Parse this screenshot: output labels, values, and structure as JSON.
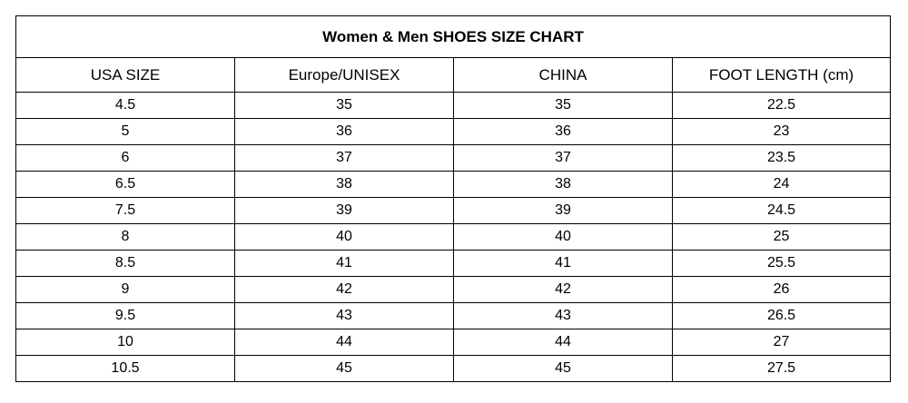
{
  "title": "Women & Men SHOES SIZE CHART",
  "headers": [
    "USA SIZE",
    "Europe/UNISEX",
    "CHINA",
    "FOOT LENGTH (cm)"
  ],
  "rows": [
    [
      "4.5",
      "35",
      "35",
      "22.5"
    ],
    [
      "5",
      "36",
      "36",
      "23"
    ],
    [
      "6",
      "37",
      "37",
      "23.5"
    ],
    [
      "6.5",
      "38",
      "38",
      "24"
    ],
    [
      "7.5",
      "39",
      "39",
      "24.5"
    ],
    [
      "8",
      "40",
      "40",
      "25"
    ],
    [
      "8.5",
      "41",
      "41",
      "25.5"
    ],
    [
      "9",
      "42",
      "42",
      "26"
    ],
    [
      "9.5",
      "43",
      "43",
      "26.5"
    ],
    [
      "10",
      "44",
      "44",
      "27"
    ],
    [
      "10.5",
      "45",
      "45",
      "27.5"
    ]
  ]
}
